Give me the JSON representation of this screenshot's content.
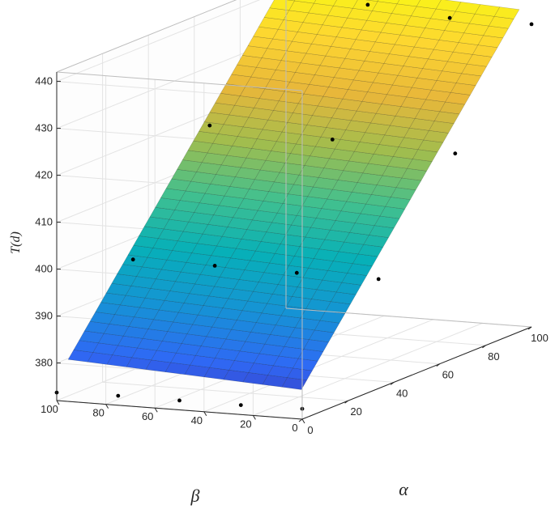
{
  "chart_data": {
    "type": "surface3d",
    "title": "",
    "xlabel": "α",
    "ylabel": "β",
    "zlabel": "T(d)",
    "xlim": [
      0,
      100
    ],
    "ylim": [
      0,
      100
    ],
    "zlim": [
      372,
      442
    ],
    "xticks": [
      "0",
      "20",
      "40",
      "60",
      "80",
      "100"
    ],
    "yticks": [
      "0",
      "20",
      "40",
      "60",
      "80",
      "100"
    ],
    "zticks": [
      "380",
      "390",
      "400",
      "410",
      "420",
      "430",
      "440"
    ],
    "grid": true,
    "colormap": [
      "#3e26a8",
      "#2f69f5",
      "#1594d4",
      "#07b0b8",
      "#41c08f",
      "#a0bd4e",
      "#e8b73a",
      "#fdd631",
      "#f9f815"
    ],
    "surface": {
      "description_free": true,
      "x_range": [
        5,
        100
      ],
      "y_range": [
        5,
        100
      ],
      "plane": {
        "c0": 373.7,
        "c_alpha": 0.656,
        "c_beta": 0.028
      }
    },
    "points": [
      {
        "x": 0,
        "y": 100,
        "z": 373.7
      },
      {
        "x": 0,
        "y": 75,
        "z": 374.0
      },
      {
        "x": 0,
        "y": 50,
        "z": 374.0
      },
      {
        "x": 0,
        "y": 25,
        "z": 374.0
      },
      {
        "x": 0,
        "y": 0,
        "z": 374.2
      },
      {
        "x": 33.3,
        "y": 100,
        "z": 395.5
      },
      {
        "x": 33.3,
        "y": 66.7,
        "z": 395.5
      },
      {
        "x": 33.3,
        "y": 33.3,
        "z": 395.3
      },
      {
        "x": 33.3,
        "y": 0,
        "z": 395.3
      },
      {
        "x": 66.7,
        "y": 100,
        "z": 417.5
      },
      {
        "x": 66.7,
        "y": 50,
        "z": 416.5
      },
      {
        "x": 66.7,
        "y": 0,
        "z": 415.5
      },
      {
        "x": 100,
        "y": 100,
        "z": 439.5
      },
      {
        "x": 100,
        "y": 66.7,
        "z": 438.0
      },
      {
        "x": 100,
        "y": 33.3,
        "z": 436.5
      },
      {
        "x": 100,
        "y": 0,
        "z": 436.5
      }
    ]
  }
}
